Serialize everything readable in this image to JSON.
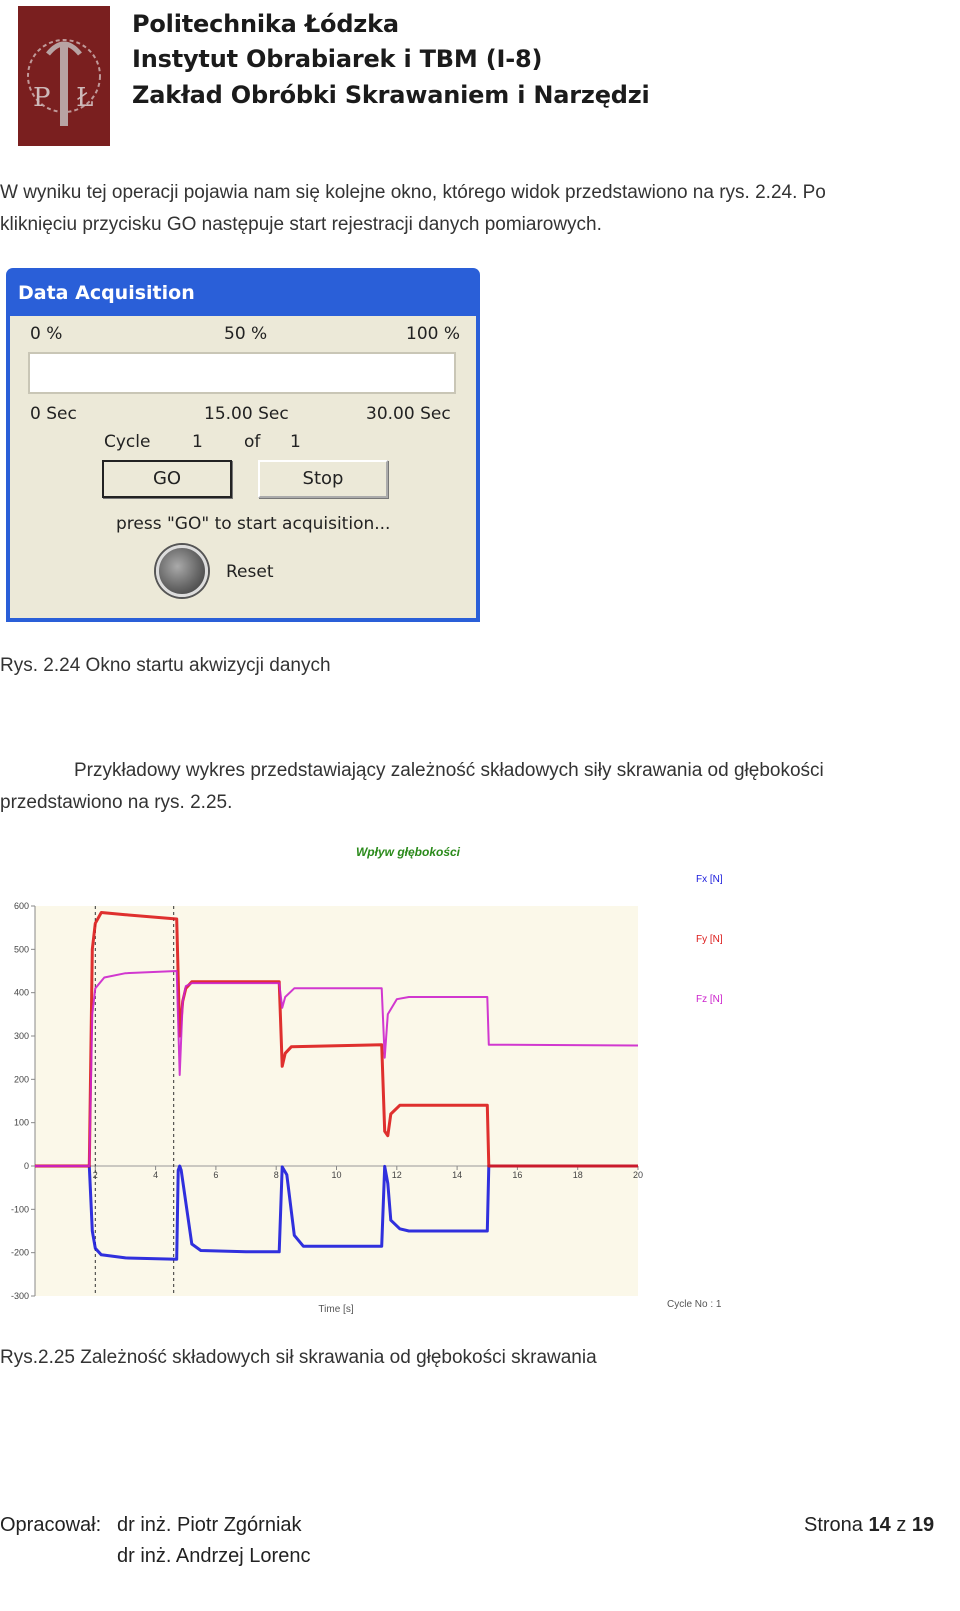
{
  "header": {
    "line1": "Politechnika Łódzka",
    "line2": "Instytut Obrabiarek i TBM (I-8)",
    "line3": "Zakład Obróbki Skrawaniem i Narzędzi"
  },
  "paragraph1": {
    "line1": "W wyniku tej operacji pojawia nam się kolejne okno, którego widok przedstawiono na rys. 2.24. Po",
    "line2": "kliknięciu przycisku GO następuje start rejestracji danych pomiarowych."
  },
  "dialog": {
    "title": "Data Acquisition",
    "pct_0": "0 %",
    "pct_50": "50 %",
    "pct_100": "100 %",
    "progress": 0,
    "time_0": "0 Sec",
    "time_mid": "15.00 Sec",
    "time_end": "30.00 Sec",
    "cycle_label": "Cycle",
    "cycle_num": "1",
    "of_label": "of",
    "cycle_total": "1",
    "go_label": "GO",
    "stop_label": "Stop",
    "status": "press \"GO\" to start acquisition...",
    "reset_label": "Reset"
  },
  "caption1": "Rys. 2.24 Okno startu akwizycji danych",
  "paragraph2": {
    "line1": "Przykładowy wykres przedstawiający zależność składowych siły skrawania od głębokości",
    "line2": "przedstawiono na rys. 2.25."
  },
  "chart_data": {
    "type": "line",
    "title": "Wpływ głębokości",
    "xlabel": "Time [s]",
    "ylabel": "",
    "xlim": [
      0,
      20
    ],
    "ylim": [
      -300,
      600
    ],
    "xticks": [
      "2",
      "4",
      "6",
      "8",
      "10",
      "12",
      "14",
      "16",
      "18",
      "20"
    ],
    "yticks": [
      "600",
      "500",
      "400",
      "300",
      "200",
      "100",
      "0",
      "-100",
      "-200",
      "-300"
    ],
    "legend": [
      "Fx [N]",
      "Fy [N]",
      "Fz [N]"
    ],
    "cycle_label": "Cycle No : 1",
    "series": [
      {
        "name": "Fx [N]",
        "color": "#1a1adc",
        "x": [
          0,
          1.8,
          1.9,
          2.0,
          2.2,
          3,
          4.7,
          4.75,
          4.8,
          4.85,
          5.2,
          5.5,
          7.0,
          8.1,
          8.2,
          8.35,
          8.6,
          8.9,
          11.5,
          11.6,
          11.7,
          11.8,
          12.1,
          12.4,
          15.0,
          15.05,
          20
        ],
        "y": [
          0,
          0,
          -150,
          -190,
          -205,
          -212,
          -215,
          -10,
          0,
          -10,
          -180,
          -195,
          -198,
          -198,
          -2,
          -20,
          -160,
          -185,
          -185,
          -1,
          -40,
          -125,
          -145,
          -150,
          -150,
          0,
          0
        ]
      },
      {
        "name": "Fy [N]",
        "color": "#dc1a1a",
        "x": [
          0,
          1.8,
          1.9,
          2.0,
          2.2,
          3,
          4.7,
          4.8,
          4.9,
          5.0,
          5.2,
          8.1,
          8.2,
          8.3,
          8.5,
          11.5,
          11.6,
          11.7,
          11.8,
          12.1,
          15.0,
          15.05,
          20
        ],
        "y": [
          0,
          0,
          500,
          560,
          585,
          580,
          570,
          300,
          380,
          410,
          425,
          425,
          230,
          260,
          275,
          280,
          80,
          70,
          120,
          140,
          140,
          0,
          0
        ]
      },
      {
        "name": "Fz [N]",
        "color": "#cc22cc",
        "x": [
          0,
          1.8,
          1.9,
          2.0,
          2.3,
          3,
          4.7,
          4.8,
          4.9,
          5.0,
          5.2,
          8.1,
          8.2,
          8.3,
          8.6,
          11.5,
          11.6,
          11.7,
          12.0,
          12.4,
          15.0,
          15.05,
          20
        ],
        "y": [
          0,
          0,
          350,
          410,
          435,
          445,
          450,
          210,
          380,
          415,
          422,
          422,
          365,
          390,
          410,
          410,
          250,
          350,
          385,
          390,
          390,
          280,
          278
        ]
      }
    ]
  },
  "caption2": "Rys.2.25 Zależność składowych sił skrawania od głębokości skrawania",
  "footer": {
    "prepared": "Opracował:",
    "author1": "dr inż. Piotr Zgórniak",
    "author2": "dr inż. Andrzej Lorenc",
    "page_prefix": "Strona",
    "page_num": "14",
    "page_of": "z",
    "page_total": "19"
  }
}
